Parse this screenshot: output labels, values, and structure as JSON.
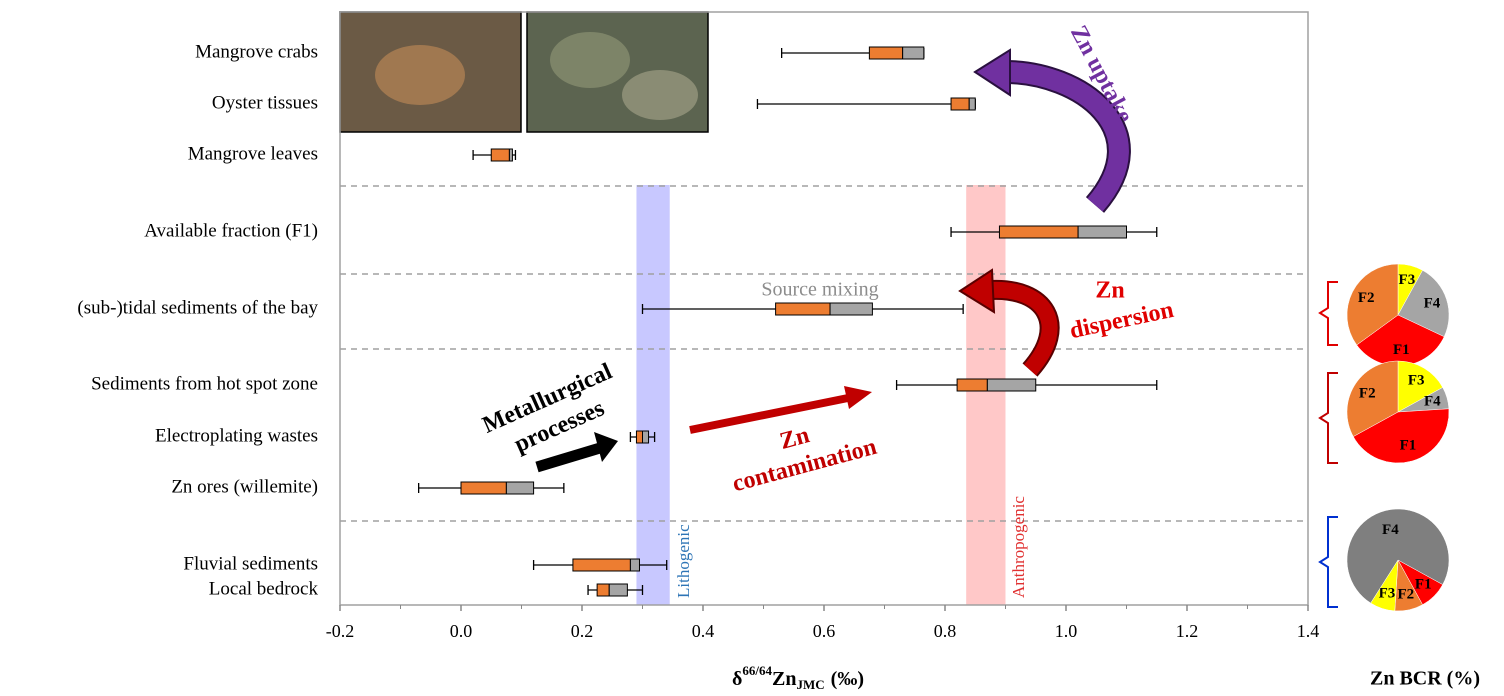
{
  "chart_data": [
    {
      "type": "box",
      "categories": [
        "Mangrove crabs",
        "Oyster tissues",
        "Mangrove leaves",
        "Available fraction (F1)",
        "(sub-)tidal sediments of the bay",
        "Sediments from hot spot zone",
        "Electroplating wastes",
        "Zn ores (willemite)",
        "Fluvial sediments",
        "Local bedrock"
      ],
      "whisker_low": [
        0.53,
        0.49,
        0.02,
        0.81,
        0.3,
        0.72,
        0.28,
        -0.07,
        0.12,
        0.21
      ],
      "q1": [
        0.675,
        0.81,
        0.05,
        0.89,
        0.52,
        0.82,
        0.29,
        0.0,
        0.185,
        0.225
      ],
      "median": [
        0.73,
        0.84,
        0.08,
        1.02,
        0.61,
        0.87,
        0.3,
        0.075,
        0.28,
        0.245
      ],
      "q3": [
        0.765,
        0.85,
        0.085,
        1.1,
        0.68,
        0.95,
        0.31,
        0.12,
        0.295,
        0.275
      ],
      "whisker_high": [
        0.765,
        0.85,
        0.09,
        1.15,
        0.83,
        1.15,
        0.32,
        0.17,
        0.34,
        0.3
      ],
      "lower_color": "#ed7d31",
      "upper_color": "#a5a5a5",
      "xlim": [
        -0.2,
        1.4
      ],
      "xticks": [
        -0.2,
        {
          "value": 0,
          "label": "0.0"
        },
        0.2,
        0.4,
        0.6,
        0.8,
        {
          "value": 1,
          "label": "1.0"
        },
        1.2,
        1.4
      ],
      "x_label": {
        "prefix": "δ",
        "sup": "66/64",
        "main": "Zn",
        "sub": "JMC",
        "unit": "(‰)"
      },
      "bands": [
        {
          "label": "Lithogenic",
          "range": [
            0.29,
            0.345
          ],
          "color": "#c8c8ff",
          "text_color": "#2e75b6"
        },
        {
          "label": "Anthropogenic",
          "range": [
            0.835,
            0.9
          ],
          "color": "#ffc8c8",
          "text_color": "#e03030"
        }
      ],
      "annotations": {
        "uptake": "Zn uptake",
        "dispersion": [
          "Zn",
          "dispersion"
        ],
        "metallurgical": [
          "Metallurgical",
          "processes"
        ],
        "contamination": [
          "Zn",
          "contamination"
        ],
        "mixing": "Source mixing"
      }
    },
    {
      "type": "pie",
      "title": "Zn BCR (%)",
      "pies": [
        {
          "labels": [
            "F3",
            "F4",
            "F1",
            "F2"
          ],
          "values": [
            8,
            24,
            33,
            35
          ],
          "colors": [
            "#ffff00",
            "#a5a5a5",
            "#ff0000",
            "#ed7d31"
          ]
        },
        {
          "labels": [
            "F3",
            "F4",
            "F1",
            "F2"
          ],
          "values": [
            17,
            7,
            43,
            33
          ],
          "colors": [
            "#ffff00",
            "#a5a5a5",
            "#ff0000",
            "#ed7d31"
          ]
        },
        {
          "labels": [
            "F1",
            "F2",
            "F3",
            "F4"
          ],
          "values": [
            9,
            9,
            8,
            74
          ],
          "colors": [
            "#ff0000",
            "#ed7d31",
            "#ffff00",
            "#7f7f7f"
          ]
        }
      ]
    }
  ]
}
